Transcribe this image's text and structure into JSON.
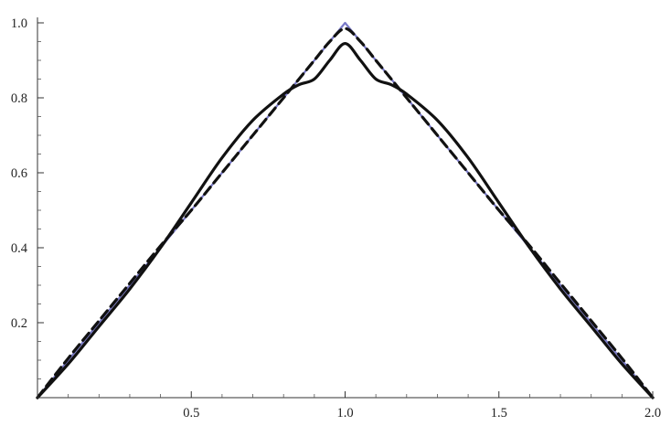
{
  "chart_data": {
    "type": "line",
    "title": "",
    "xlabel": "",
    "ylabel": "",
    "xlim": [
      0,
      2
    ],
    "ylim": [
      0,
      1
    ],
    "grid": false,
    "x_ticks": [
      {
        "value": 0.5,
        "label": "0.5"
      },
      {
        "value": 1.0,
        "label": "1.0"
      },
      {
        "value": 1.5,
        "label": "1.5"
      },
      {
        "value": 2.0,
        "label": "2.0"
      }
    ],
    "y_ticks": [
      {
        "value": 0.2,
        "label": "0.2"
      },
      {
        "value": 0.4,
        "label": "0.4"
      },
      {
        "value": 0.6,
        "label": "0.6"
      },
      {
        "value": 0.8,
        "label": "0.8"
      },
      {
        "value": 1.0,
        "label": "1.0"
      }
    ],
    "series": [
      {
        "color": "#7a7ac8",
        "style": "solid-thin",
        "x": [
          0,
          1,
          2
        ],
        "y": [
          0,
          1.0,
          0
        ]
      },
      {
        "color": "#111111",
        "style": "solid",
        "x": [
          0,
          0.1,
          0.2,
          0.3,
          0.4,
          0.5,
          0.6,
          0.7,
          0.8,
          0.85,
          0.9,
          0.95,
          1.0,
          1.05,
          1.1,
          1.15,
          1.2,
          1.3,
          1.4,
          1.5,
          1.6,
          1.7,
          1.8,
          1.9,
          2.0
        ],
        "y": [
          0,
          0.09,
          0.19,
          0.29,
          0.4,
          0.52,
          0.64,
          0.74,
          0.81,
          0.835,
          0.85,
          0.9,
          0.945,
          0.9,
          0.85,
          0.835,
          0.81,
          0.74,
          0.64,
          0.52,
          0.4,
          0.29,
          0.19,
          0.09,
          0
        ]
      },
      {
        "color": "#111111",
        "style": "dashed",
        "x": [
          0,
          0.1,
          0.2,
          0.3,
          0.4,
          0.5,
          0.6,
          0.7,
          0.8,
          0.9,
          0.95,
          1.0,
          1.05,
          1.1,
          1.2,
          1.3,
          1.4,
          1.5,
          1.6,
          1.7,
          1.8,
          1.9,
          2.0
        ],
        "y": [
          0,
          0.105,
          0.205,
          0.305,
          0.405,
          0.5,
          0.6,
          0.7,
          0.8,
          0.9,
          0.95,
          0.985,
          0.95,
          0.9,
          0.8,
          0.7,
          0.6,
          0.5,
          0.405,
          0.305,
          0.205,
          0.105,
          0
        ]
      }
    ]
  }
}
